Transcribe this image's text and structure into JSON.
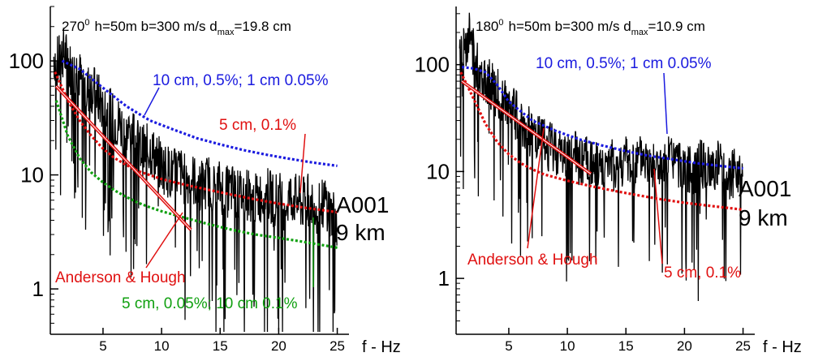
{
  "chart_data": [
    {
      "type": "line",
      "title_text": "270",
      "title_sup": "0",
      "title_params": "h=50m  b=300 m/s  d",
      "title_sub": "max",
      "title_end": "=19.8 cm",
      "xlabel": "f - Hz",
      "ylabel": "",
      "x_ticks": [
        5,
        10,
        15,
        20,
        25
      ],
      "y_ticks": [
        {
          "value": 1,
          "label": "1"
        },
        {
          "value": 10,
          "label": "10"
        },
        {
          "value": 100,
          "label": "100"
        }
      ],
      "xlim": [
        0.5,
        26
      ],
      "ylim": [
        0.4,
        300
      ],
      "y_scale": "log",
      "station_label": "A001",
      "distance_label": "9 km",
      "series": [
        {
          "name": "10 cm, 0.5%; 1 cm 0.05%",
          "color": "#1a1adf",
          "style": "dotted",
          "x": [
            1.5,
            3,
            5,
            7,
            9,
            11,
            13,
            15,
            17,
            19,
            21,
            23,
            25
          ],
          "y": [
            100,
            85,
            58,
            40,
            30,
            25,
            21,
            18.5,
            16.5,
            15,
            13.8,
            12.8,
            12
          ]
        },
        {
          "name": "5 cm, 0.1%",
          "color": "#e01010",
          "style": "dotted",
          "x": [
            0.9,
            2,
            3,
            4,
            5,
            6,
            7,
            8,
            10,
            12,
            14,
            16,
            18,
            20,
            22,
            25
          ],
          "y": [
            80,
            45,
            30,
            22,
            17,
            14,
            12.2,
            10.8,
            9.2,
            8.2,
            7.4,
            6.7,
            6.1,
            5.6,
            5.2,
            4.7
          ]
        },
        {
          "name": "5 cm, 0.05%; 10 cm 0.1%",
          "color": "#10a010",
          "style": "dotted",
          "x": [
            1,
            2,
            3,
            4,
            5,
            6,
            7,
            8,
            9,
            10,
            12,
            14,
            16,
            18,
            20,
            22,
            24,
            25
          ],
          "y": [
            45,
            22,
            14,
            10.5,
            8.6,
            7.3,
            6.4,
            5.7,
            5.2,
            4.8,
            4.2,
            3.7,
            3.3,
            3.0,
            2.8,
            2.6,
            2.4,
            2.3
          ]
        },
        {
          "name": "Anderson & Hough",
          "color": "#e01010",
          "style": "solid",
          "x": [
            1,
            12.5
          ],
          "y": [
            60,
            3.3
          ]
        }
      ],
      "spectrum": {
        "color": "#000000",
        "x": [
          0.8,
          1.2,
          1.6,
          2.0,
          2.4,
          2.8,
          3.2,
          3.6,
          4.0,
          4.5,
          5.0,
          5.5,
          6.0,
          6.5,
          7.0,
          7.5,
          8.0,
          8.5,
          9.0,
          9.5,
          10.0,
          10.5,
          11.0,
          11.5,
          12.0,
          12.5,
          13.0,
          13.5,
          14.0,
          14.5,
          15.0,
          15.5,
          16.0,
          16.5,
          17.0,
          17.5,
          18.0,
          18.5,
          19.0,
          19.5,
          20.0,
          20.5,
          21.0,
          21.5,
          22.0,
          22.5,
          23.0,
          23.5,
          24.0,
          24.5,
          25.0
        ],
        "y": [
          110,
          95,
          120,
          100,
          75,
          85,
          65,
          55,
          60,
          48,
          40,
          35,
          30,
          28,
          22,
          25,
          18,
          16,
          17,
          14,
          12,
          11,
          10,
          11,
          9,
          9.5,
          8.5,
          8,
          9,
          7.5,
          8,
          7,
          7.5,
          6.5,
          7,
          6.8,
          6,
          6.5,
          7,
          6,
          6.5,
          5.5,
          6.5,
          6,
          5.5,
          6,
          5.5,
          5,
          6,
          4.5,
          4
        ]
      },
      "annotations": [
        {
          "text": "10 cm, 0.5%; 1 cm 0.05%",
          "color": "#1a1adf"
        },
        {
          "text": "5 cm, 0.1%",
          "color": "#e01010"
        },
        {
          "text": "Anderson & Hough",
          "color": "#e01010"
        },
        {
          "text": "5 cm, 0.05%; 10 cm 0.1%",
          "color": "#10a010"
        }
      ]
    },
    {
      "type": "line",
      "title_text": "180",
      "title_sup": "0",
      "title_params": "h=50m  b=300 m/s  d",
      "title_sub": "max",
      "title_end": "=10.9 cm",
      "xlabel": "f - Hz",
      "ylabel": "",
      "x_ticks": [
        5,
        10,
        15,
        20,
        25
      ],
      "y_ticks": [
        {
          "value": 1,
          "label": "1"
        },
        {
          "value": 10,
          "label": "10"
        },
        {
          "value": 100,
          "label": "100"
        }
      ],
      "xlim": [
        0.5,
        26
      ],
      "ylim": [
        0.3,
        350
      ],
      "y_scale": "log",
      "station_label": "A001",
      "distance_label": "9 km",
      "series": [
        {
          "name": "10 cm, 0.5%; 1 cm 0.05%",
          "color": "#1a1adf",
          "style": "dotted",
          "x": [
            1,
            2,
            3,
            4,
            5,
            7,
            9,
            11,
            13,
            15,
            17,
            19,
            21,
            23,
            25
          ],
          "y": [
            95,
            92,
            85,
            65,
            45,
            30,
            24,
            20,
            17.5,
            15.5,
            14,
            13,
            12,
            11.3,
            10.7
          ]
        },
        {
          "name": "5 cm, 0.1%",
          "color": "#e01010",
          "style": "dotted",
          "x": [
            0.9,
            2,
            3,
            4,
            5,
            6,
            7,
            8,
            10,
            12,
            14,
            16,
            18,
            20,
            22,
            25
          ],
          "y": [
            85,
            48,
            28,
            19,
            14.5,
            12,
            10.5,
            9.4,
            8.2,
            7.3,
            6.6,
            6.0,
            5.5,
            5.1,
            4.8,
            4.4
          ]
        },
        {
          "name": "Anderson & Hough",
          "color": "#e01010",
          "style": "solid",
          "x": [
            1,
            12
          ],
          "y": [
            70,
            9.5
          ]
        }
      ],
      "spectrum": {
        "color": "#000000",
        "x": [
          0.8,
          1.2,
          1.6,
          2.0,
          2.4,
          2.8,
          3.2,
          3.6,
          4.0,
          4.5,
          5.0,
          5.5,
          6.0,
          6.5,
          7.0,
          7.5,
          8.0,
          8.5,
          9.0,
          9.5,
          10.0,
          10.5,
          11.0,
          11.5,
          12.0,
          12.5,
          13.0,
          13.5,
          14.0,
          14.5,
          15.0,
          15.5,
          16.0,
          16.5,
          17.0,
          17.5,
          18.0,
          18.5,
          19.0,
          19.5,
          20.0,
          20.5,
          21.0,
          21.5,
          22.0,
          22.5,
          23.0,
          23.5,
          24.0,
          24.5,
          25.0
        ],
        "y": [
          110,
          150,
          200,
          130,
          90,
          80,
          70,
          60,
          55,
          45,
          40,
          35,
          30,
          25,
          22,
          20,
          18,
          17,
          16,
          15,
          14,
          15,
          12,
          13,
          12,
          11,
          12,
          13,
          11,
          12,
          13,
          11,
          12,
          14,
          11,
          12,
          10,
          12,
          13,
          11,
          12,
          10,
          11,
          12,
          10,
          11,
          12,
          10,
          9,
          10,
          9
        ]
      },
      "annotations": [
        {
          "text": "10 cm, 0.5%; 1 cm 0.05%",
          "color": "#1a1adf"
        },
        {
          "text": "Anderson & Hough",
          "color": "#e01010"
        },
        {
          "text": "5 cm, 0.1%",
          "color": "#e01010"
        }
      ]
    }
  ]
}
